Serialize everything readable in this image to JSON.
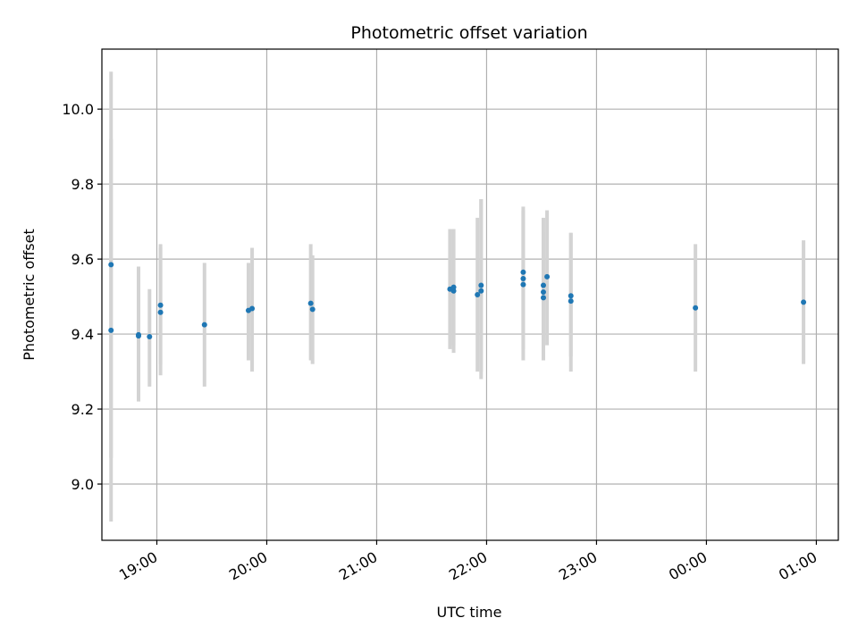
{
  "chart_data": {
    "type": "scatter",
    "title": "Photometric offset variation",
    "xlabel": "UTC time",
    "ylabel": "Photometric offset",
    "x_axis": {
      "type": "time",
      "range": [
        "18:30",
        "01:12"
      ],
      "ticks": [
        {
          "t": "19:00",
          "label": "19:00"
        },
        {
          "t": "20:00",
          "label": "20:00"
        },
        {
          "t": "21:00",
          "label": "21:00"
        },
        {
          "t": "22:00",
          "label": "22:00"
        },
        {
          "t": "23:00",
          "label": "23:00"
        },
        {
          "t": "00:00",
          "label": "00:00"
        },
        {
          "t": "01:00",
          "label": "01:00"
        }
      ]
    },
    "y_axis": {
      "range": [
        8.85,
        10.16
      ],
      "ticks": [
        {
          "v": 9.0,
          "label": "9.0"
        },
        {
          "v": 9.2,
          "label": "9.2"
        },
        {
          "v": 9.4,
          "label": "9.4"
        },
        {
          "v": 9.6,
          "label": "9.6"
        },
        {
          "v": 9.8,
          "label": "9.8"
        },
        {
          "v": 10.0,
          "label": "10.0"
        }
      ]
    },
    "grid": true,
    "legend": "none",
    "point_color": "#1f77b4",
    "errorbar_color": "#d3d3d3",
    "points": [
      {
        "t": "18:35",
        "y": 9.585,
        "low": 9.07,
        "high": 10.1
      },
      {
        "t": "18:35",
        "y": 9.41,
        "low": 8.9,
        "high": 9.92
      },
      {
        "t": "18:50",
        "y": 9.395,
        "low": 9.22,
        "high": 9.58
      },
      {
        "t": "18:50",
        "y": 9.398,
        "low": 9.23,
        "high": 9.56
      },
      {
        "t": "18:56",
        "y": 9.393,
        "low": 9.26,
        "high": 9.52
      },
      {
        "t": "19:02",
        "y": 9.477,
        "low": 9.32,
        "high": 9.64
      },
      {
        "t": "19:02",
        "y": 9.458,
        "low": 9.29,
        "high": 9.63
      },
      {
        "t": "19:26",
        "y": 9.425,
        "low": 9.26,
        "high": 9.59
      },
      {
        "t": "19:50",
        "y": 9.463,
        "low": 9.33,
        "high": 9.59
      },
      {
        "t": "19:52",
        "y": 9.468,
        "low": 9.3,
        "high": 9.63
      },
      {
        "t": "20:24",
        "y": 9.482,
        "low": 9.33,
        "high": 9.64
      },
      {
        "t": "20:25",
        "y": 9.466,
        "low": 9.32,
        "high": 9.61
      },
      {
        "t": "21:40",
        "y": 9.52,
        "low": 9.36,
        "high": 9.68
      },
      {
        "t": "21:42",
        "y": 9.515,
        "low": 9.35,
        "high": 9.68
      },
      {
        "t": "21:42",
        "y": 9.525,
        "low": 9.37,
        "high": 9.68
      },
      {
        "t": "21:55",
        "y": 9.505,
        "low": 9.3,
        "high": 9.71
      },
      {
        "t": "21:57",
        "y": 9.515,
        "low": 9.28,
        "high": 9.76
      },
      {
        "t": "21:57",
        "y": 9.53,
        "low": 9.3,
        "high": 9.76
      },
      {
        "t": "22:20",
        "y": 9.565,
        "low": 9.4,
        "high": 9.74
      },
      {
        "t": "22:20",
        "y": 9.548,
        "low": 9.36,
        "high": 9.73
      },
      {
        "t": "22:20",
        "y": 9.532,
        "low": 9.33,
        "high": 9.73
      },
      {
        "t": "22:31",
        "y": 9.53,
        "low": 9.33,
        "high": 9.71
      },
      {
        "t": "22:31",
        "y": 9.512,
        "low": 9.35,
        "high": 9.67
      },
      {
        "t": "22:31",
        "y": 9.497,
        "low": 9.33,
        "high": 9.66
      },
      {
        "t": "22:33",
        "y": 9.553,
        "low": 9.37,
        "high": 9.73
      },
      {
        "t": "22:46",
        "y": 9.502,
        "low": 9.34,
        "high": 9.67
      },
      {
        "t": "22:46",
        "y": 9.488,
        "low": 9.3,
        "high": 9.67
      },
      {
        "t": "23:54",
        "y": 9.47,
        "low": 9.3,
        "high": 9.64
      },
      {
        "t": "00:53",
        "y": 9.485,
        "low": 9.32,
        "high": 9.65
      }
    ]
  }
}
